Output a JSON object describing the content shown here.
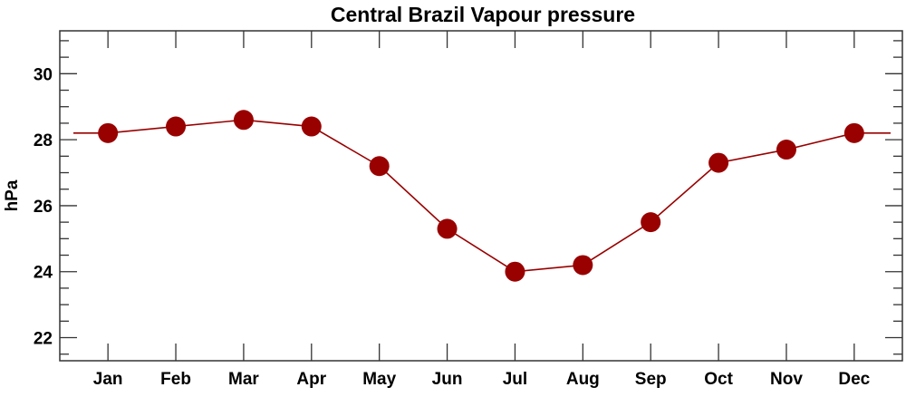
{
  "chart_data": {
    "type": "line",
    "title": "Central Brazil Vapour pressure",
    "xlabel": "",
    "ylabel": "hPa",
    "categories": [
      "Jan",
      "Feb",
      "Mar",
      "Apr",
      "May",
      "Jun",
      "Jul",
      "Aug",
      "Sep",
      "Oct",
      "Nov",
      "Dec"
    ],
    "series": [
      {
        "name": "Vapour pressure",
        "color": "#990000",
        "values": [
          28.2,
          28.4,
          28.6,
          28.4,
          27.2,
          25.3,
          24.0,
          24.2,
          25.5,
          27.3,
          27.7,
          28.2
        ]
      }
    ],
    "ylim": [
      21.3,
      31.3
    ],
    "yticks": [
      22,
      24,
      26,
      28,
      30
    ],
    "yminor_step": 0.5,
    "grid": false,
    "legend": "none"
  }
}
